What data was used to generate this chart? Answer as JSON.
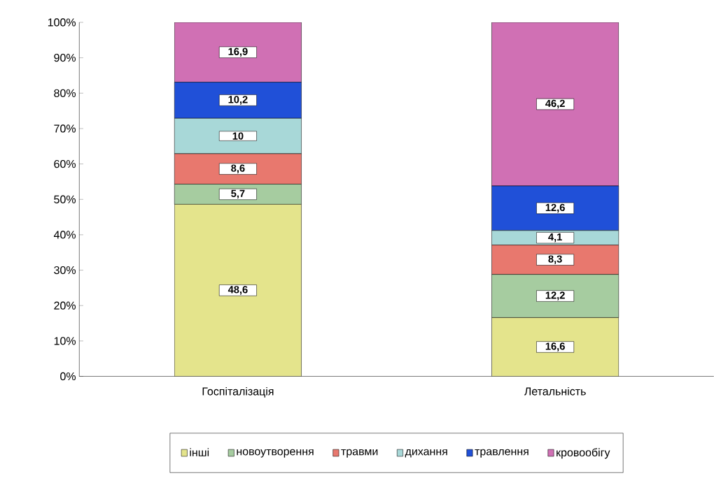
{
  "chart_data": {
    "type": "bar",
    "stacked": true,
    "categories": [
      "Госпіталізація",
      "Летальність"
    ],
    "series": [
      {
        "name": "інші",
        "color": "#e4e48c",
        "values": [
          48.6,
          16.6
        ],
        "value_labels": [
          "48,6",
          "16,6"
        ]
      },
      {
        "name": "новоутворення",
        "color": "#a6cca0",
        "values": [
          5.7,
          12.2
        ],
        "value_labels": [
          "5,7",
          "12,2"
        ]
      },
      {
        "name": "травми",
        "color": "#e8786e",
        "values": [
          8.6,
          8.3
        ],
        "value_labels": [
          "8,6",
          "8,3"
        ]
      },
      {
        "name": "дихання",
        "color": "#a8d8d8",
        "values": [
          10,
          4.1
        ],
        "value_labels": [
          "10",
          "4,1"
        ]
      },
      {
        "name": "травлення",
        "color": "#2050d8",
        "values": [
          10.2,
          12.6
        ],
        "value_labels": [
          "10,2",
          "12,6"
        ]
      },
      {
        "name": "кровообігу",
        "color": "#d070b4",
        "values": [
          16.9,
          46.2
        ],
        "value_labels": [
          "16,9",
          "46,2"
        ]
      }
    ],
    "ylim": [
      0,
      100
    ],
    "yticks": [
      {
        "value": 0,
        "label": "0%"
      },
      {
        "value": 10,
        "label": "10%"
      },
      {
        "value": 20,
        "label": "20%"
      },
      {
        "value": 30,
        "label": "30%"
      },
      {
        "value": 40,
        "label": "40%"
      },
      {
        "value": 50,
        "label": "50%"
      },
      {
        "value": 60,
        "label": "60%"
      },
      {
        "value": 70,
        "label": "70%"
      },
      {
        "value": 80,
        "label": "80%"
      },
      {
        "value": 90,
        "label": "90%"
      },
      {
        "value": 100,
        "label": "100%"
      }
    ],
    "grid": false,
    "legend": "bottom"
  }
}
